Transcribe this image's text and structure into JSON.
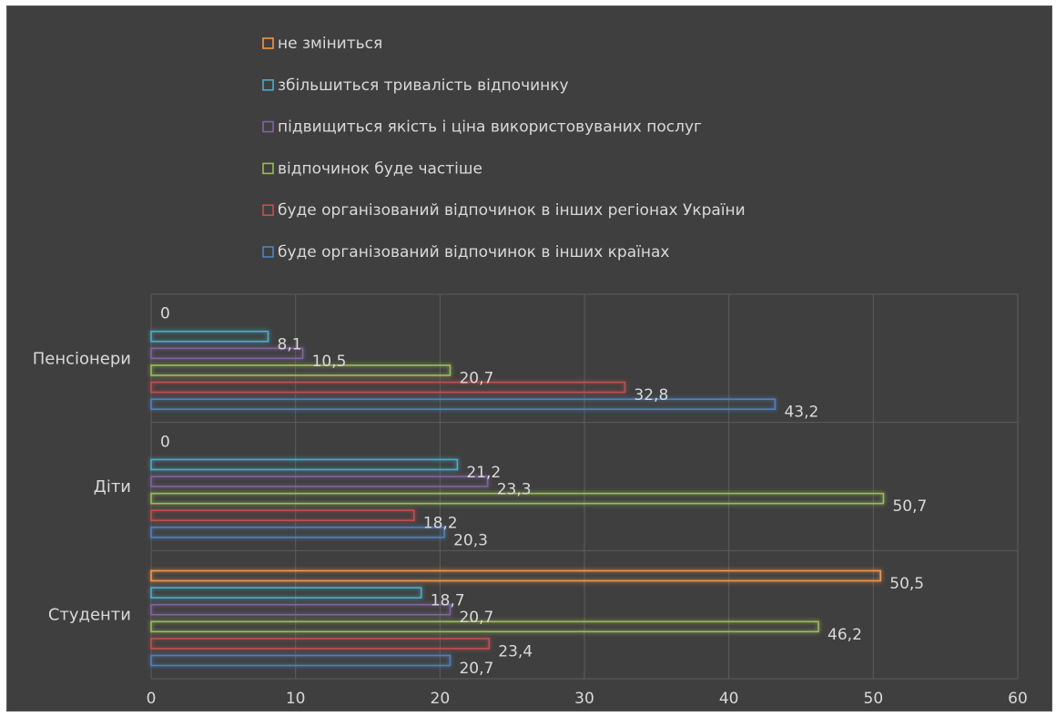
{
  "chart_data": {
    "type": "bar",
    "orientation": "horizontal",
    "title": "",
    "xlabel": "",
    "ylabel": "",
    "categories": [
      "Студенти",
      "Діти",
      "Пенсіонери"
    ],
    "xlim": [
      0,
      60
    ],
    "x_ticks": [
      "0",
      "10",
      "20",
      "30",
      "40",
      "50",
      "60"
    ],
    "grid": true,
    "legend_position": "top",
    "series": [
      {
        "name": "буде організований відпочинок в інших країнах",
        "color": "#4f81bd",
        "values": [
          20.7,
          20.3,
          43.2
        ],
        "labels": [
          "20,7",
          "20,3",
          "43,2"
        ]
      },
      {
        "name": "буде організований відпочинок в інших регіонах України",
        "color": "#c0504d",
        "values": [
          23.4,
          18.2,
          32.8
        ],
        "labels": [
          "23,4",
          "18,2",
          "32,8"
        ]
      },
      {
        "name": "відпочинок буде частіше",
        "color": "#9bbb59",
        "values": [
          46.2,
          50.7,
          20.7
        ],
        "labels": [
          "46,2",
          "50,7",
          "20,7"
        ]
      },
      {
        "name": "підвищиться якість і ціна використовуваних послуг",
        "color": "#8064a2",
        "values": [
          20.7,
          23.3,
          10.5
        ],
        "labels": [
          "20,7",
          "23,3",
          "10,5"
        ]
      },
      {
        "name": "збільшиться тривалість відпочинку",
        "color": "#4bacc6",
        "values": [
          18.7,
          21.2,
          8.1
        ],
        "labels": [
          "18,7",
          "21,2",
          "8,1"
        ]
      },
      {
        "name": "не зміниться",
        "color": "#f79646",
        "values": [
          50.5,
          0,
          0
        ],
        "labels": [
          "50,5",
          "0",
          "0"
        ]
      }
    ]
  }
}
